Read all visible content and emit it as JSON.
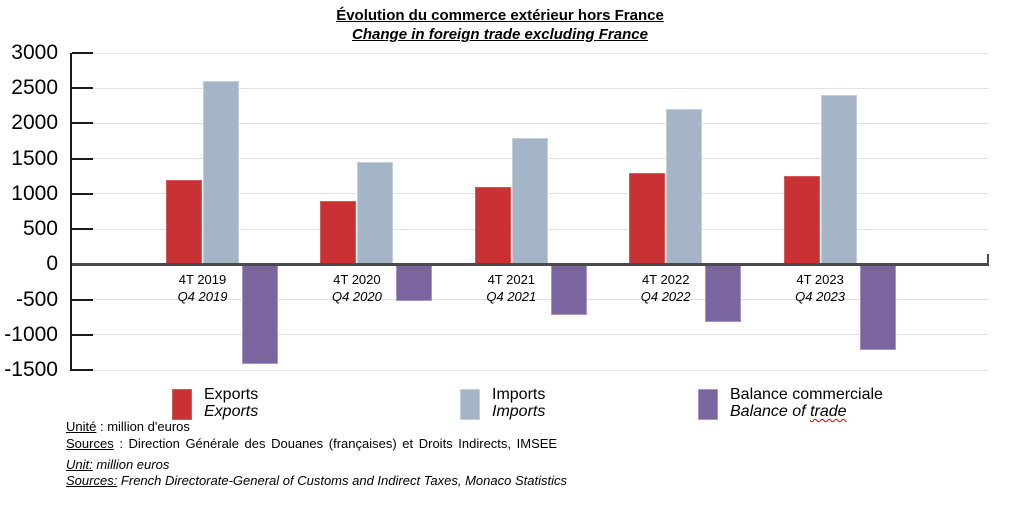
{
  "chart_data": {
    "type": "bar",
    "title": {
      "fr": "Évolution du commerce extérieur hors France",
      "en": "Change in foreign trade excluding France"
    },
    "categories": [
      {
        "fr": "4T 2019",
        "en": "Q4 2019"
      },
      {
        "fr": "4T 2020",
        "en": "Q4 2020"
      },
      {
        "fr": "4T 2021",
        "en": "Q4 2021"
      },
      {
        "fr": "4T 2022",
        "en": "Q4 2022"
      },
      {
        "fr": "4T 2023",
        "en": "Q4 2023"
      }
    ],
    "series": [
      {
        "key": "exports",
        "name_fr": "Exports",
        "name_en": "Exports",
        "color": "#c93235",
        "border": "#d05b5d",
        "values": [
          1200,
          900,
          1100,
          1300,
          1250
        ]
      },
      {
        "key": "imports",
        "name_fr": "Imports",
        "name_en": "Imports",
        "color": "#a3b5c6",
        "border": "#c3cfdb",
        "values": [
          2600,
          1450,
          1800,
          2200,
          2400
        ]
      },
      {
        "key": "balance",
        "name_fr": "Balance commerciale",
        "name_en": "Balance of trade",
        "color": "#7a659e",
        "border": "#a795c6",
        "values": [
          -1400,
          -500,
          -700,
          -800,
          -1200
        ]
      }
    ],
    "ylim": [
      -1500,
      3000
    ],
    "ytick_step": 500,
    "xlabel": "",
    "ylabel": "",
    "grid": true,
    "legend_position": "bottom",
    "axis_color": "#1a1a1a",
    "grid_color": "#e2e2e2",
    "zero_line_color": "#4a4a4a"
  },
  "legend": {
    "items": [
      {
        "line1": "Exports",
        "line2": "Exports",
        "line2_squiggle": ""
      },
      {
        "line1": "Imports",
        "line2": "Imports",
        "line2_squiggle": ""
      },
      {
        "line1": "Balance commerciale",
        "line2": "Balance of",
        "line2_squiggle": "trade"
      }
    ]
  },
  "footer": {
    "unite_label": "Unité",
    "unite_rest": " : million d'euros",
    "sources_fr_label": "Sources",
    "sources_fr_rest": " : Direction Générale des Douanes (françaises) et Droits Indirects, IMSEE",
    "unit_label": "Unit:",
    "unit_rest": " million euros",
    "sources_en_label": "Sources:",
    "sources_en_rest": " French Directorate-General of Customs and Indirect Taxes, Monaco Statistics"
  }
}
